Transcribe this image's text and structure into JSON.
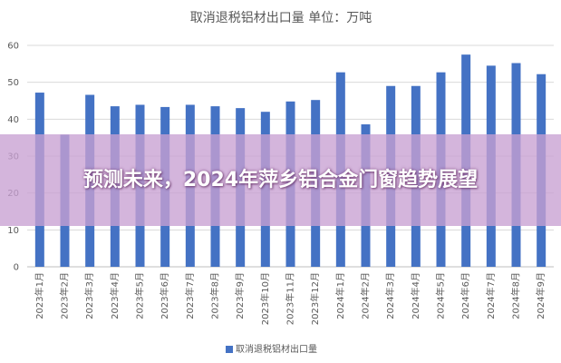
{
  "chart_data": {
    "type": "bar",
    "title": "取消退税铝材出口量 单位：万吨",
    "categories": [
      "2023年1月",
      "2023年2月",
      "2023年3月",
      "2023年4月",
      "2023年5月",
      "2023年6月",
      "2023年7月",
      "2023年8月",
      "2023年9月",
      "2023年10月",
      "2023年11月",
      "2023年12月",
      "2024年1月",
      "2024年2月",
      "2024年3月",
      "2024年4月",
      "2024年5月",
      "2024年6月",
      "2024年7月",
      "2024年8月",
      "2024年9月"
    ],
    "series": [
      {
        "name": "取消退税铝材出口量",
        "values": [
          47.2,
          35.8,
          46.6,
          43.5,
          43.9,
          43.3,
          43.9,
          43.5,
          43.0,
          42.0,
          44.8,
          45.2,
          52.7,
          38.6,
          49.0,
          49.0,
          52.7,
          57.5,
          54.5,
          55.2,
          52.2
        ]
      }
    ],
    "ylim": [
      0,
      60
    ],
    "yticks": [
      0,
      10,
      20,
      30,
      40,
      50,
      60
    ],
    "grid": true,
    "legend_position": "bottom",
    "bar_color": "#4472C4"
  },
  "overlay": {
    "headline": "预测未来，2024年萍乡铝合金门窗趋势展望"
  }
}
